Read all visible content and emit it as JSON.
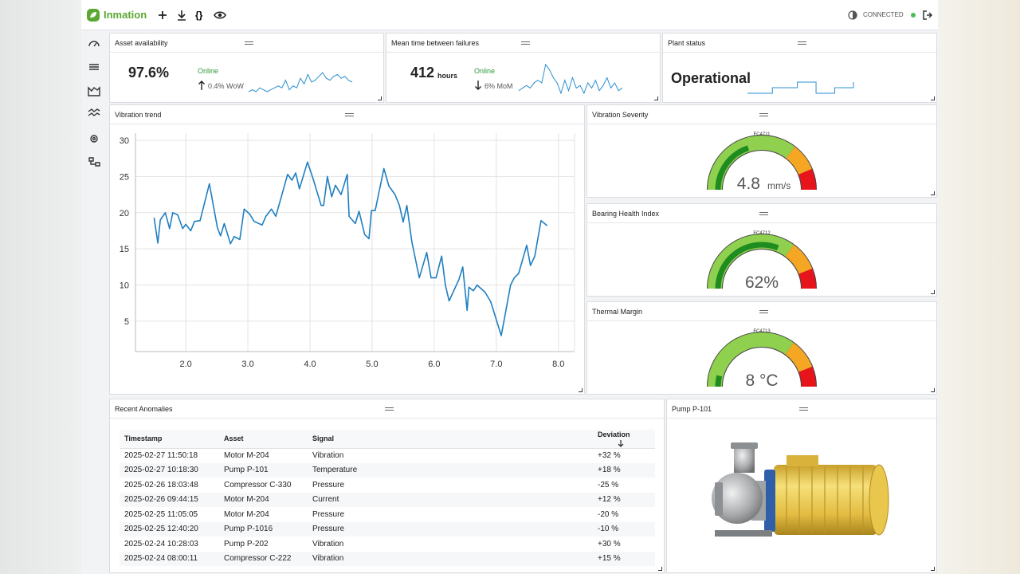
{
  "header": {
    "brand": "Inmation",
    "status": "CONNECTED"
  },
  "kpis": [
    {
      "title": "Asset availability",
      "value": "97.6%",
      "status": "Online",
      "change": "0.4% WoW",
      "sparkline": [
        3,
        4,
        3,
        5,
        4,
        3,
        4,
        5,
        6,
        5,
        9,
        4,
        6,
        5,
        10,
        7,
        12,
        8,
        9,
        11,
        13,
        10,
        9,
        11,
        12,
        10,
        11,
        9,
        8
      ]
    },
    {
      "title": "Mean time between failures",
      "value": "412",
      "unit": "hours",
      "status": "Online",
      "change": "6% MoM",
      "sparkline": [
        4,
        5,
        6,
        5,
        7,
        8,
        7,
        14,
        12,
        9,
        7,
        3,
        8,
        4,
        9,
        5,
        6,
        3,
        7,
        5,
        8,
        4,
        6,
        9,
        5,
        7,
        4,
        5
      ]
    },
    {
      "title": "Plant status",
      "value": "Operational",
      "sparkline": [
        1,
        1,
        1,
        1,
        2,
        2,
        2,
        2,
        3,
        3,
        3,
        1,
        1,
        1,
        2,
        2,
        2,
        3
      ]
    }
  ],
  "chart_data": {
    "type": "line",
    "title": "Vibration trend",
    "color": "#1f7fc0",
    "x": [
      1.49,
      1.55,
      1.59,
      1.67,
      1.74,
      1.79,
      1.87,
      1.95,
      2.0,
      2.08,
      2.14,
      2.23,
      2.38,
      2.51,
      2.56,
      2.62,
      2.72,
      2.78,
      2.87,
      2.94,
      3.03,
      3.1,
      3.23,
      3.29,
      3.38,
      3.45,
      3.64,
      3.71,
      3.77,
      3.83,
      3.96,
      4.05,
      4.18,
      4.22,
      4.28,
      4.35,
      4.41,
      4.5,
      4.6,
      4.63,
      4.73,
      4.79,
      4.88,
      4.95,
      4.99,
      5.05,
      5.19,
      5.27,
      5.37,
      5.44,
      5.5,
      5.56,
      5.64,
      5.76,
      5.88,
      5.95,
      6.03,
      6.12,
      6.18,
      6.24,
      6.4,
      6.46,
      6.53,
      6.56,
      6.63,
      6.69,
      6.82,
      6.91,
      7.08,
      7.23,
      7.29,
      7.36,
      7.49,
      7.55,
      7.62,
      7.72,
      7.82
    ],
    "values": [
      19.3,
      15.8,
      19,
      20,
      17.8,
      20,
      19.7,
      17.8,
      18.4,
      17.5,
      18.8,
      18.9,
      24,
      17.9,
      16.8,
      18.5,
      15.7,
      16.7,
      16.3,
      20.5,
      19.8,
      18.8,
      18.3,
      19.5,
      20.5,
      19.5,
      25.3,
      24.5,
      25.5,
      23.3,
      27,
      24.7,
      21,
      21,
      25,
      22.2,
      23.8,
      22.5,
      25.3,
      19.5,
      18.5,
      20.2,
      17,
      16.4,
      20.3,
      20.3,
      26.1,
      23.7,
      22.5,
      21,
      18.7,
      21,
      16,
      11,
      14.5,
      11,
      11,
      14,
      10,
      7.8,
      10.8,
      12.5,
      6.5,
      9.7,
      9.2,
      10,
      9,
      7.7,
      3,
      10,
      11,
      11.6,
      15.5,
      12.7,
      14,
      18.9,
      18.2
    ],
    "xlim": [
      1.19,
      8.26
    ],
    "ylim": [
      0.8,
      31
    ],
    "xticks": [
      {
        "value": 2,
        "label": "2.0"
      },
      {
        "value": 3,
        "label": "3.0"
      },
      {
        "value": 4,
        "label": "4.0"
      },
      {
        "value": 5,
        "label": "5.0"
      },
      {
        "value": 6,
        "label": "6.0"
      },
      {
        "value": 7,
        "label": "7.0"
      },
      {
        "value": 8,
        "label": "8.0"
      }
    ],
    "yticks": [
      5,
      10,
      15,
      20,
      25,
      30
    ],
    "grid": true
  },
  "gauges": [
    {
      "title": "Vibration Severity",
      "tag": "FC4711",
      "value": 4.8,
      "unit": "mm/s",
      "range": [
        0,
        12
      ],
      "thresholds": [
        8.5,
        10.5
      ]
    },
    {
      "title": "Bearing Health Index",
      "tag": "FC4712",
      "value": 62,
      "value_label": "62%",
      "range": [
        0,
        100
      ],
      "thresholds": [
        70,
        88
      ]
    },
    {
      "title": "Thermal Margin",
      "tag": "FC4713",
      "value": 8,
      "value_label": "8 °C",
      "range": [
        0,
        100
      ],
      "thresholds": [
        70,
        88
      ]
    }
  ],
  "anomalies": {
    "title": "Recent Anomalies",
    "columns": [
      "Timestamp",
      "Asset",
      "Signal",
      "Deviation"
    ],
    "rows": [
      [
        "2025-02-27 11:50:18",
        "Motor M-204",
        "Vibration",
        "+32 %"
      ],
      [
        "2025-02-27 10:18:30",
        "Pump P-101",
        "Temperature",
        "+18 %"
      ],
      [
        "2025-02-26 18:03:48",
        "Compressor C-330",
        "Pressure",
        "-25 %"
      ],
      [
        "2025-02-26 09:44:15",
        "Motor M-204",
        "Current",
        "+12 %"
      ],
      [
        "2025-02-25 11:05:05",
        "Motor M-204",
        "Pressure",
        "-20 %"
      ],
      [
        "2025-02-25 12:40:20",
        "Pump P-1016",
        "Pressure",
        "-10 %"
      ],
      [
        "2025-02-24 10:28:03",
        "Pump P-202",
        "Vibration",
        "+30 %"
      ],
      [
        "2025-02-24 08:00:11",
        "Compressor C-222",
        "Vibration",
        "+15 %"
      ]
    ]
  },
  "image_panel": {
    "title": "Pump P-101"
  }
}
